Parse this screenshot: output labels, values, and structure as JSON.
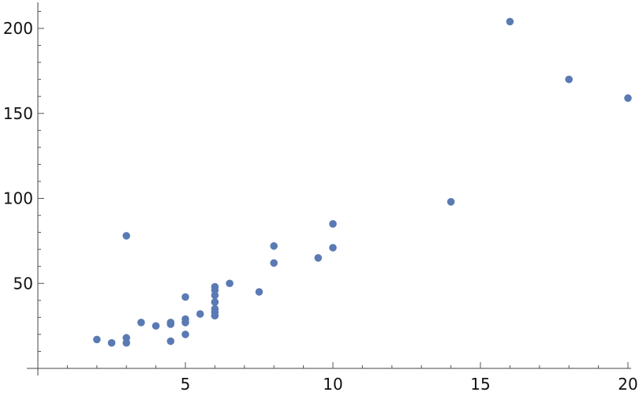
{
  "chart_data": {
    "type": "scatter",
    "title": "",
    "xlabel": "",
    "ylabel": "",
    "xlim": [
      0,
      20
    ],
    "ylim": [
      0,
      215
    ],
    "x_major_ticks": [
      5,
      10,
      15,
      20
    ],
    "x_minor_step": 1,
    "y_major_ticks": [
      50,
      100,
      150,
      200
    ],
    "y_minor_step": 10,
    "x_tick_labels": [
      "5",
      "10",
      "15",
      "20"
    ],
    "y_tick_labels": [
      "50",
      "100",
      "150",
      "200"
    ],
    "grid": false,
    "point_color": "#5a7ab3",
    "series": [
      {
        "points": [
          {
            "x": 2,
            "y": 17
          },
          {
            "x": 2.5,
            "y": 15
          },
          {
            "x": 3,
            "y": 18
          },
          {
            "x": 3,
            "y": 15
          },
          {
            "x": 3,
            "y": 78
          },
          {
            "x": 3.5,
            "y": 27
          },
          {
            "x": 4,
            "y": 25
          },
          {
            "x": 4.5,
            "y": 27
          },
          {
            "x": 4.5,
            "y": 26
          },
          {
            "x": 4.5,
            "y": 16
          },
          {
            "x": 5,
            "y": 42
          },
          {
            "x": 5,
            "y": 29
          },
          {
            "x": 5,
            "y": 27
          },
          {
            "x": 5,
            "y": 20
          },
          {
            "x": 5.5,
            "y": 32
          },
          {
            "x": 6,
            "y": 48
          },
          {
            "x": 6,
            "y": 46
          },
          {
            "x": 6,
            "y": 43
          },
          {
            "x": 6,
            "y": 39
          },
          {
            "x": 6,
            "y": 35
          },
          {
            "x": 6,
            "y": 33
          },
          {
            "x": 6,
            "y": 31
          },
          {
            "x": 6.5,
            "y": 50
          },
          {
            "x": 7.5,
            "y": 45
          },
          {
            "x": 8,
            "y": 72
          },
          {
            "x": 8,
            "y": 62
          },
          {
            "x": 9.5,
            "y": 65
          },
          {
            "x": 10,
            "y": 85
          },
          {
            "x": 10,
            "y": 71
          },
          {
            "x": 14,
            "y": 98
          },
          {
            "x": 16,
            "y": 204
          },
          {
            "x": 18,
            "y": 170
          },
          {
            "x": 20,
            "y": 159
          }
        ]
      }
    ]
  }
}
